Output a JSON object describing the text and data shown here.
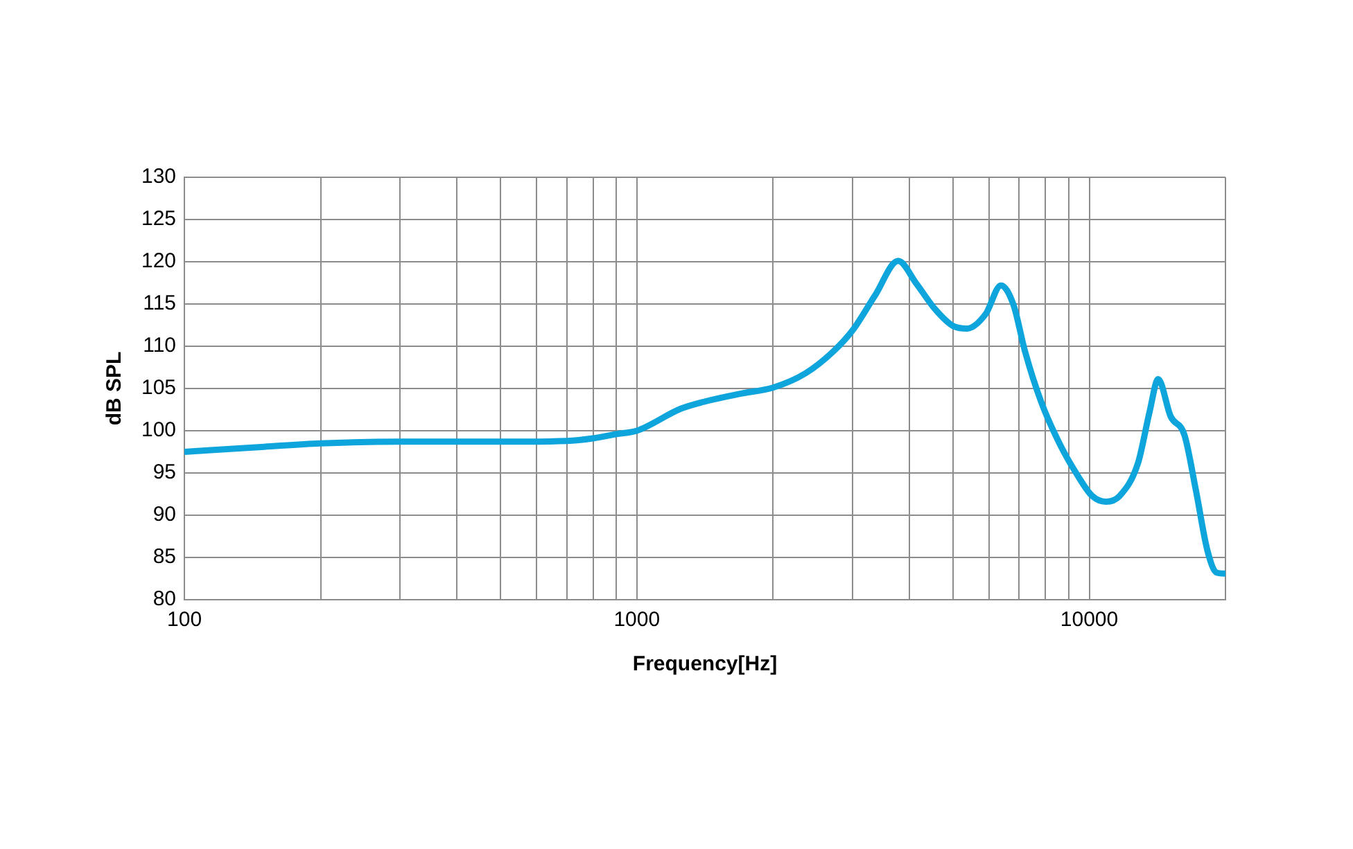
{
  "chart_data": {
    "type": "line",
    "xlabel": "Frequency[Hz]",
    "ylabel": "dB SPL",
    "log": "x",
    "grid": true,
    "legend": false,
    "marker": "none",
    "line_style": "solid",
    "xlim": [
      100,
      20000
    ],
    "ylim": [
      80,
      130
    ],
    "xticks": [
      100,
      {
        "value": 200,
        "label": null
      },
      {
        "value": 300,
        "label": null
      },
      {
        "value": 400,
        "label": null
      },
      {
        "value": 500,
        "label": null
      },
      {
        "value": 600,
        "label": null
      },
      {
        "value": 700,
        "label": null
      },
      {
        "value": 800,
        "label": null
      },
      {
        "value": 900,
        "label": null
      },
      1000,
      {
        "value": 2000,
        "label": null
      },
      {
        "value": 3000,
        "label": null
      },
      {
        "value": 4000,
        "label": null
      },
      {
        "value": 5000,
        "label": null
      },
      {
        "value": 6000,
        "label": null
      },
      {
        "value": 7000,
        "label": null
      },
      {
        "value": 8000,
        "label": null
      },
      {
        "value": 9000,
        "label": null
      },
      10000,
      {
        "value": 20000,
        "label": null
      }
    ],
    "yticks": [
      80,
      85,
      90,
      95,
      100,
      105,
      110,
      115,
      120,
      125,
      130
    ],
    "series": [
      {
        "color": "#0ea5dc",
        "x": [
          100,
          150,
          200,
          300,
          500,
          700,
          800,
          900,
          1000,
          1250,
          1400,
          1700,
          2000,
          2360,
          2720,
          3000,
          3360,
          3780,
          4150,
          4560,
          5000,
          5370,
          5900,
          6380,
          6800,
          7210,
          7830,
          8610,
          9450,
          10140,
          10880,
          11680,
          12820,
          13600,
          14200,
          15130,
          16230,
          17200,
          18250,
          19140,
          20000
        ],
        "values": [
          97.5,
          98.1,
          98.5,
          98.7,
          98.7,
          98.8,
          99.1,
          99.6,
          100,
          102.6,
          103.4,
          104.4,
          105.1,
          106.8,
          109.4,
          111.9,
          116,
          120.1,
          117.4,
          114.4,
          112.4,
          112.1,
          113.8,
          117.2,
          114.9,
          109.4,
          103.4,
          98.4,
          94.6,
          92.3,
          91.6,
          92.3,
          96.2,
          102.3,
          106.1,
          101.7,
          99.5,
          93,
          85.8,
          83.2,
          83.1
        ]
      }
    ]
  }
}
